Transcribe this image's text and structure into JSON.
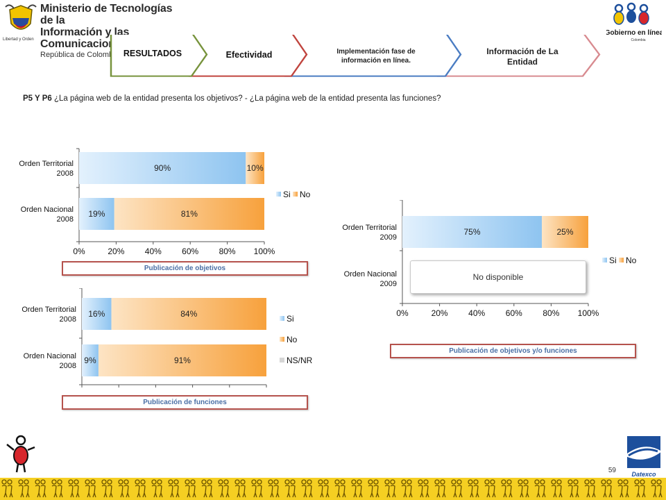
{
  "header": {
    "ministry_line1": "Ministerio de Tecnologías de la",
    "ministry_line2": "Información y las Comunicaciones",
    "ministry_line3": "República de Colombia",
    "escudo_caption": "Libertad y Orden",
    "gobierno_line1": "Gobierno en línea",
    "gobierno_line2": "Colombia"
  },
  "nav": [
    {
      "label": "RESULTADOS"
    },
    {
      "label": "Efectividad"
    },
    {
      "label": "Implementación fase de información en línea."
    },
    {
      "label": "Información de La Entidad"
    }
  ],
  "question": {
    "code": "P5 Y P6",
    "text": "¿La página web de la entidad presenta los objetivos? - ¿La página web de la entidad presenta las funciones?"
  },
  "captions": {
    "objetivos": "Publicación de objetivos",
    "funciones": "Publicación de funciones",
    "combined": "Publicación de objetivos y/o funciones"
  },
  "footer": {
    "page_number": "59",
    "datexco": "Datexco"
  },
  "colors": {
    "si": "#8ec4f0",
    "no": "#f7a13c",
    "nsnr": "#d6d6d6",
    "caption_border": "#b5524c"
  },
  "chart_data": [
    {
      "type": "bar",
      "orientation": "horizontal",
      "stacked": true,
      "categories": [
        "Orden Territorial 2008",
        "Orden Nacional 2008"
      ],
      "series": [
        {
          "name": "Si",
          "values": [
            90,
            19
          ]
        },
        {
          "name": "No",
          "values": [
            10,
            81
          ]
        }
      ],
      "data_labels": [
        [
          "90%",
          "10%"
        ],
        [
          "19%",
          "81%"
        ]
      ],
      "xlim": [
        0,
        100
      ],
      "x_ticks": [
        "0%",
        "20%",
        "40%",
        "60%",
        "80%",
        "100%"
      ],
      "legend": "right",
      "title": ""
    },
    {
      "type": "bar",
      "orientation": "horizontal",
      "stacked": true,
      "categories": [
        "Orden Territorial 2008",
        "Orden Nacional 2008"
      ],
      "series": [
        {
          "name": "Si",
          "values": [
            16,
            9
          ]
        },
        {
          "name": "No",
          "values": [
            84,
            91
          ]
        },
        {
          "name": "NS/NR",
          "values": [
            0,
            0
          ]
        }
      ],
      "data_labels": [
        [
          "16%",
          "84%"
        ],
        [
          "9%",
          "91%"
        ]
      ],
      "xlim": [
        0,
        100
      ],
      "legend": "right",
      "title": ""
    },
    {
      "type": "bar",
      "orientation": "horizontal",
      "stacked": true,
      "categories": [
        "Orden Territorial 2009",
        "Orden Nacional 2009"
      ],
      "series": [
        {
          "name": "Si",
          "values": [
            75,
            null
          ]
        },
        {
          "name": "No",
          "values": [
            25,
            null
          ]
        }
      ],
      "data_labels": [
        [
          "75%",
          "25%"
        ],
        []
      ],
      "xlim": [
        0,
        100
      ],
      "x_ticks": [
        "0%",
        "20%",
        "40%",
        "60%",
        "80%",
        "100%"
      ],
      "legend": "right",
      "unavailable_label": "No disponible",
      "title": ""
    }
  ]
}
